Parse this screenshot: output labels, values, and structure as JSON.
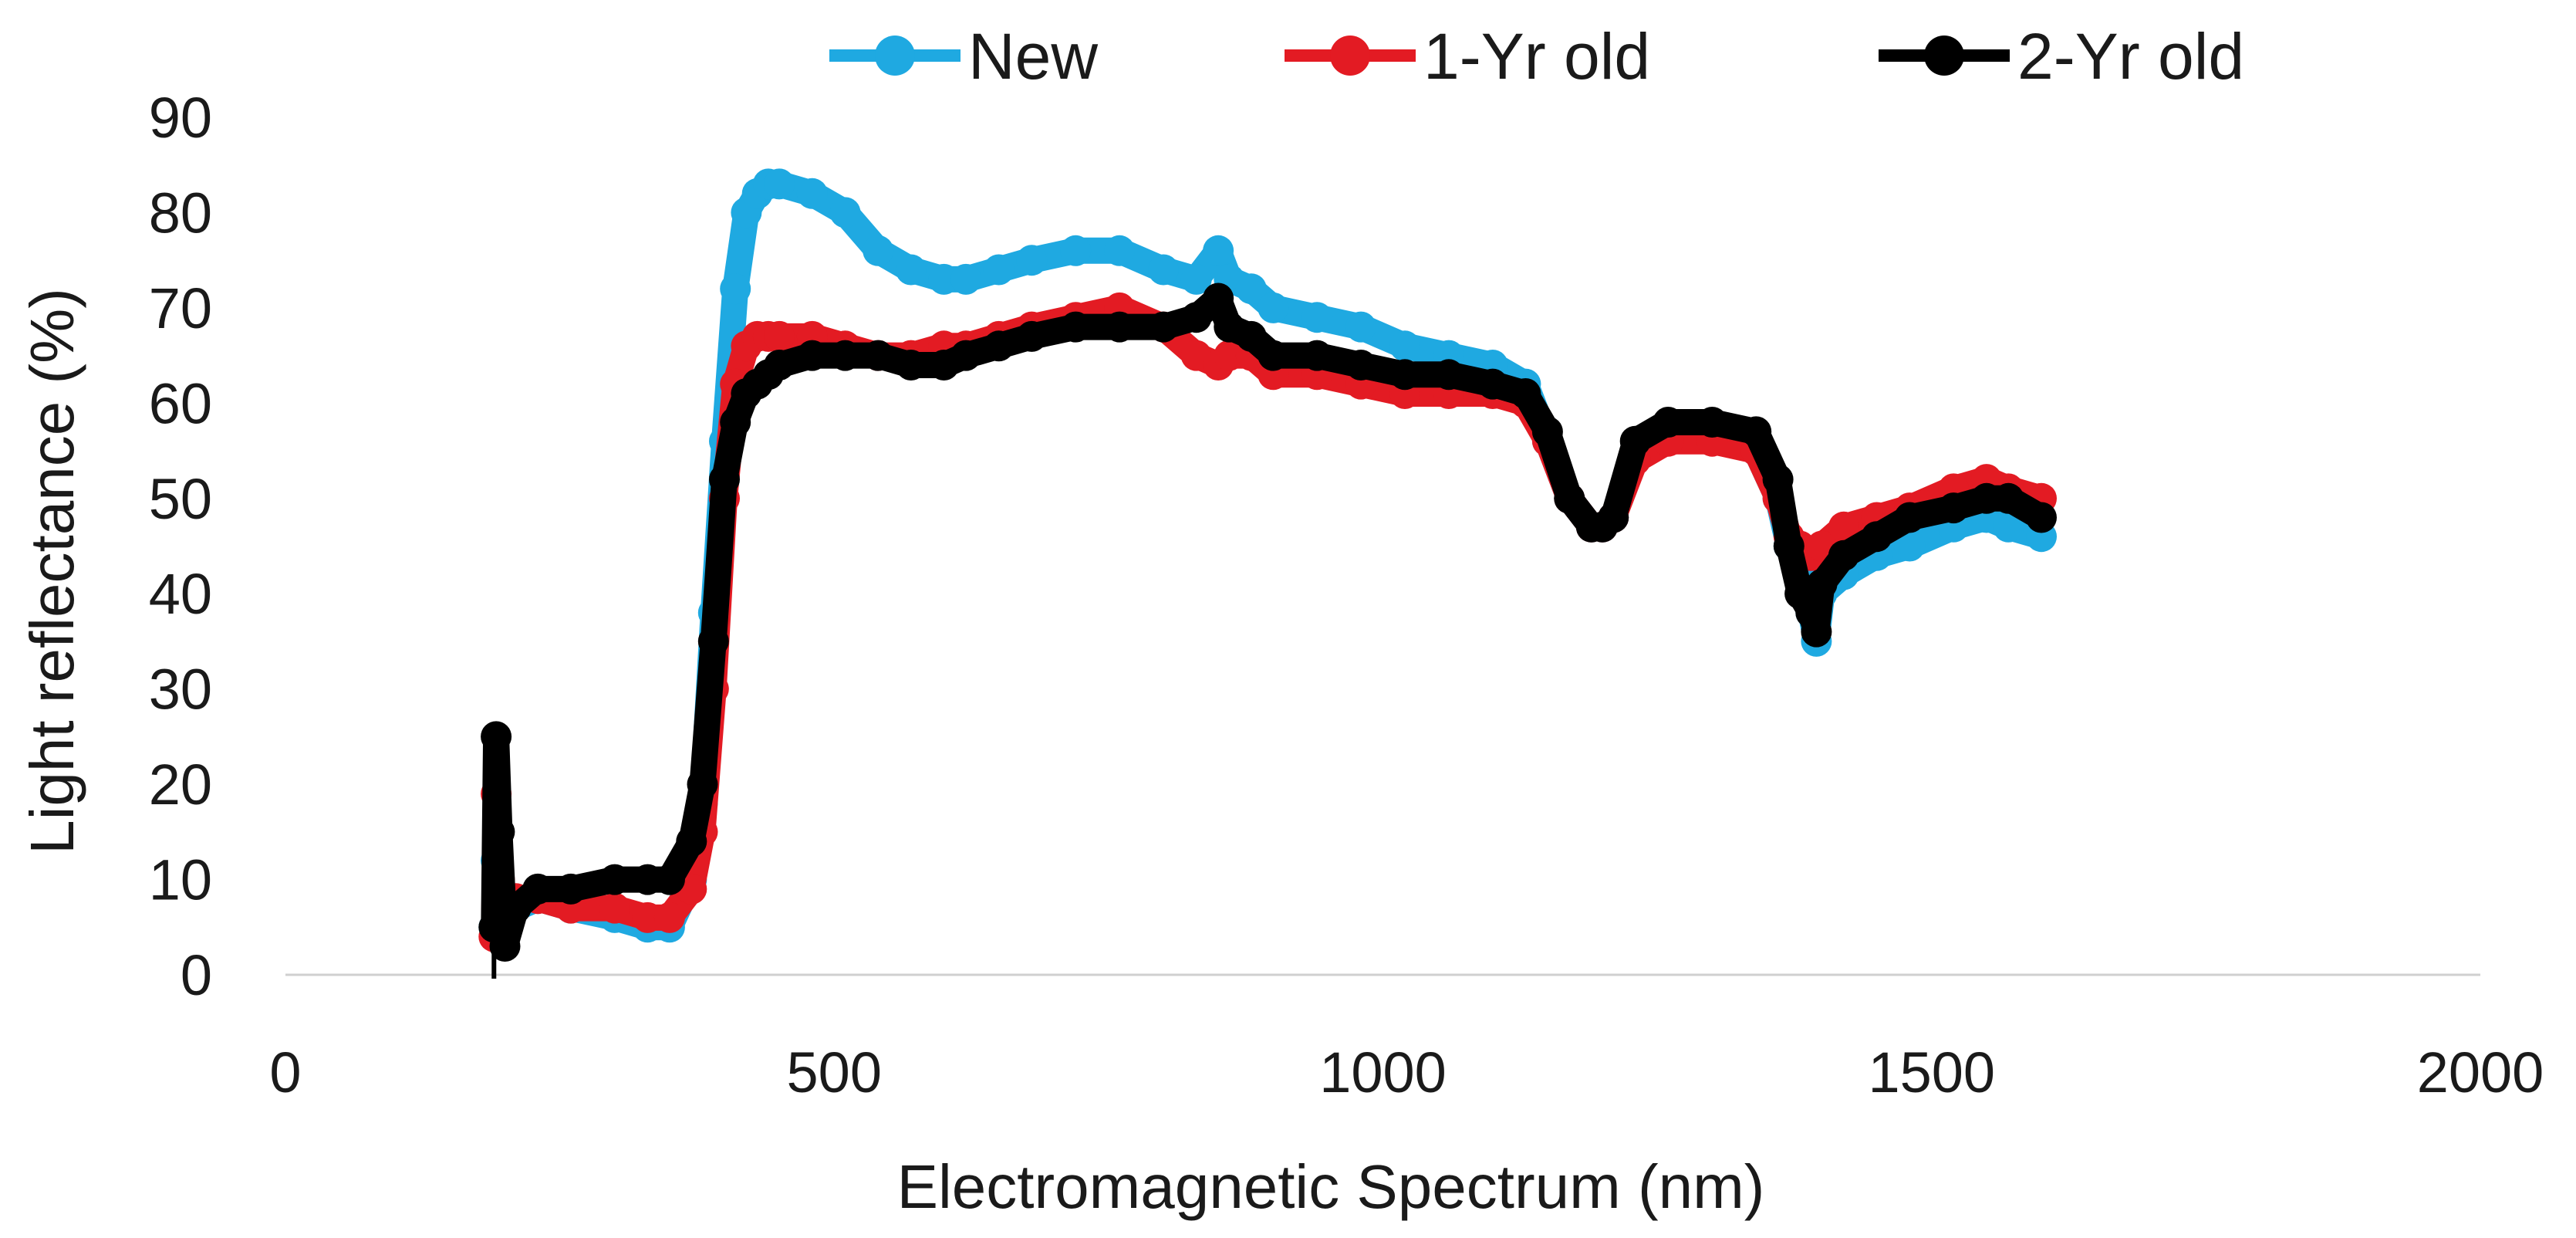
{
  "chart_data": {
    "type": "line",
    "title": "",
    "xlabel": "Electromagnetic Spectrum (nm)",
    "ylabel": "Light reflectance (%)",
    "xlim": [
      0,
      2000
    ],
    "ylim": [
      0,
      90
    ],
    "xticks": [
      0,
      500,
      1000,
      1500,
      2000
    ],
    "yticks": [
      0,
      10,
      20,
      30,
      40,
      50,
      60,
      70,
      80,
      90
    ],
    "grid": false,
    "legend_position": "top-center",
    "series": [
      {
        "name": "New",
        "color": "#1fa9e1",
        "x": [
          190,
          192,
          195,
          200,
          210,
          230,
          260,
          300,
          330,
          350,
          370,
          380,
          390,
          400,
          410,
          420,
          430,
          440,
          450,
          480,
          510,
          540,
          570,
          600,
          620,
          650,
          680,
          720,
          760,
          800,
          830,
          850,
          860,
          880,
          900,
          940,
          980,
          1020,
          1060,
          1100,
          1130,
          1150,
          1170,
          1190,
          1200,
          1210,
          1230,
          1260,
          1300,
          1340,
          1360,
          1370,
          1380,
          1390,
          1395,
          1400,
          1420,
          1450,
          1480,
          1520,
          1550,
          1570,
          1600
        ],
        "y": [
          5,
          12,
          6,
          4,
          7,
          8,
          7,
          6,
          5,
          5,
          10,
          18,
          38,
          56,
          72,
          80,
          82,
          83,
          83,
          82,
          80,
          76,
          74,
          73,
          73,
          74,
          75,
          76,
          76,
          74,
          73,
          76,
          73,
          72,
          70,
          69,
          68,
          66,
          65,
          64,
          62,
          56,
          50,
          47,
          47,
          48,
          55,
          57,
          57,
          55,
          50,
          45,
          42,
          38,
          35,
          40,
          42,
          44,
          45,
          47,
          48,
          47,
          46
        ]
      },
      {
        "name": "1-Yr old",
        "color": "#e31b23",
        "x": [
          190,
          192,
          195,
          200,
          210,
          230,
          260,
          300,
          330,
          350,
          370,
          380,
          390,
          400,
          410,
          420,
          430,
          440,
          450,
          480,
          510,
          540,
          570,
          600,
          620,
          650,
          680,
          720,
          760,
          800,
          830,
          850,
          860,
          880,
          900,
          940,
          980,
          1020,
          1060,
          1100,
          1130,
          1150,
          1170,
          1190,
          1200,
          1210,
          1230,
          1260,
          1300,
          1340,
          1360,
          1370,
          1380,
          1390,
          1395,
          1400,
          1420,
          1450,
          1480,
          1520,
          1550,
          1570,
          1600
        ],
        "y": [
          4,
          19,
          10,
          7,
          8,
          8,
          7,
          7,
          6,
          6,
          9,
          15,
          30,
          50,
          62,
          66,
          67,
          67,
          67,
          67,
          66,
          65,
          65,
          66,
          66,
          67,
          68,
          69,
          70,
          68,
          65,
          64,
          65,
          65,
          63,
          63,
          62,
          61,
          61,
          61,
          60,
          56,
          50,
          47,
          47,
          48,
          54,
          56,
          56,
          55,
          50,
          46,
          45,
          44,
          44,
          45,
          47,
          48,
          49,
          51,
          52,
          51,
          50
        ]
      },
      {
        "name": "2-Yr old",
        "color": "#000000",
        "x": [
          190,
          192,
          195,
          200,
          210,
          230,
          260,
          300,
          330,
          350,
          370,
          380,
          390,
          400,
          410,
          420,
          430,
          440,
          450,
          480,
          510,
          540,
          570,
          600,
          620,
          650,
          680,
          720,
          760,
          800,
          830,
          850,
          860,
          880,
          900,
          940,
          980,
          1020,
          1060,
          1100,
          1130,
          1150,
          1170,
          1190,
          1200,
          1210,
          1230,
          1260,
          1300,
          1340,
          1360,
          1370,
          1380,
          1390,
          1395,
          1400,
          1420,
          1450,
          1480,
          1520,
          1550,
          1570,
          1600
        ],
        "y": [
          5,
          25,
          15,
          3,
          7,
          9,
          9,
          10,
          10,
          10,
          14,
          20,
          35,
          52,
          58,
          61,
          62,
          63,
          64,
          65,
          65,
          65,
          64,
          64,
          65,
          66,
          67,
          68,
          68,
          68,
          69,
          71,
          68,
          67,
          65,
          65,
          64,
          63,
          63,
          62,
          61,
          57,
          50,
          47,
          47,
          48,
          56,
          58,
          58,
          57,
          52,
          45,
          40,
          38,
          36,
          41,
          44,
          46,
          48,
          49,
          50,
          50,
          48
        ]
      }
    ]
  }
}
